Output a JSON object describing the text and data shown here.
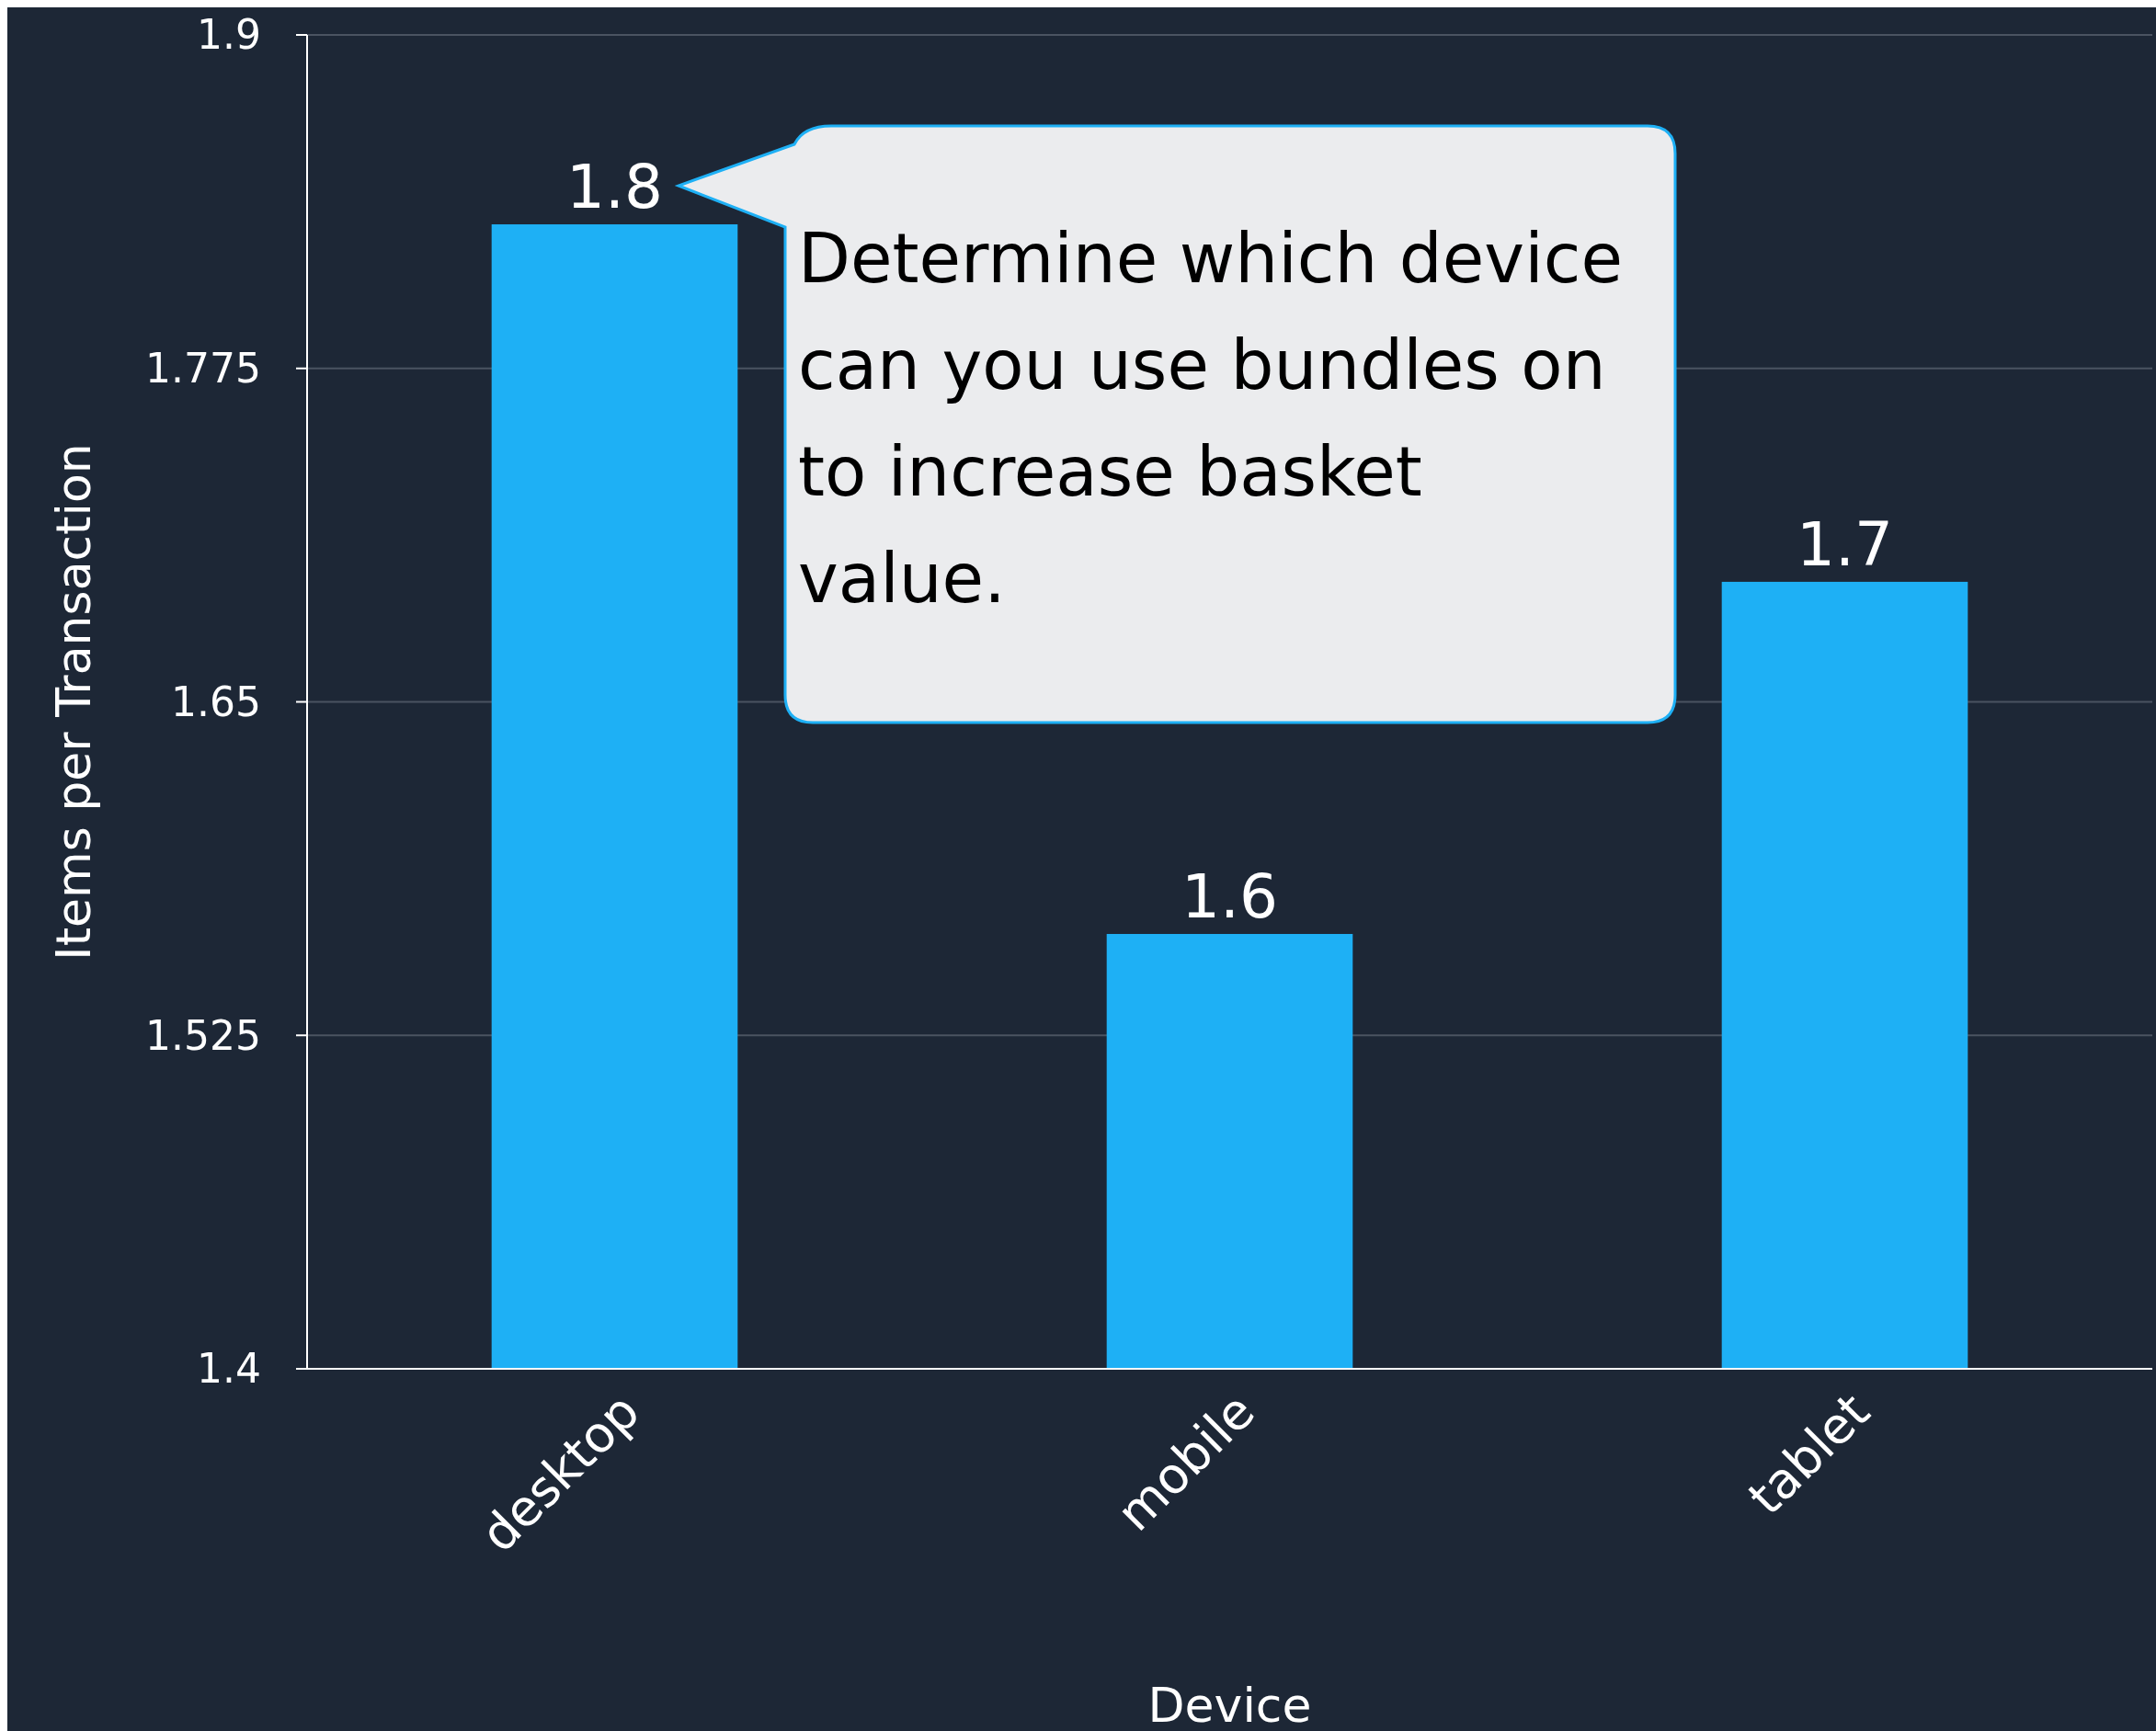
{
  "chart_data": {
    "type": "bar",
    "xlabel": "Device",
    "ylabel": "Items per Transaction",
    "categories": [
      "desktop",
      "mobile",
      "tablet"
    ],
    "values": [
      1.829,
      1.563,
      1.695
    ],
    "value_labels": [
      "1.8",
      "1.6",
      "1.7"
    ],
    "color": "#1eb0f5",
    "ylim": [
      1.4,
      1.9
    ],
    "yticks": [
      1.4,
      1.525,
      1.65,
      1.775,
      1.9
    ],
    "grid": "y",
    "annotations": [
      "Determine which device can you use bundles on to increase basket value."
    ]
  }
}
